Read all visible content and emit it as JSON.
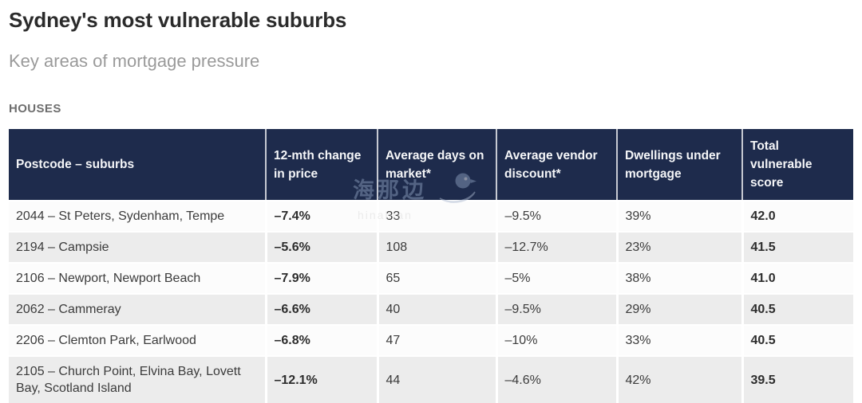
{
  "page": {
    "title": "Sydney's most vulnerable suburbs",
    "subtitle": "Key areas of mortgage pressure",
    "section_label": "HOUSES"
  },
  "colors": {
    "header_bg": "#1e2b4c",
    "header_text": "#f5f6f8",
    "zebra_row_bg": "#ececec",
    "plain_row_bg": "#fcfcfc"
  },
  "watermark": {
    "text_cn": "海那边",
    "text_en": "hinabian",
    "icon": "bird-icon"
  },
  "table": {
    "columns": [
      {
        "key": "postcode-suburbs",
        "label": "Postcode – suburbs"
      },
      {
        "key": "price-change-12mth",
        "label": "12-mth change in price"
      },
      {
        "key": "avg-days-on-market",
        "label": "Average days on market*"
      },
      {
        "key": "avg-vendor-discount",
        "label": "Average vendor discount*"
      },
      {
        "key": "dwellings-under-mortgage",
        "label": "Dwellings under mortgage"
      },
      {
        "key": "total-vulnerable-score",
        "label": "Total vulnerable score"
      }
    ],
    "rows": [
      [
        "2044 – St Peters, Sydenham, Tempe",
        "–7.4%",
        "33",
        "–9.5%",
        "39%",
        "42.0"
      ],
      [
        "2194 – Campsie",
        "–5.6%",
        "108",
        "–12.7%",
        "23%",
        "41.5"
      ],
      [
        "2106 – Newport, Newport Beach",
        "–7.9%",
        "65",
        "–5%",
        "38%",
        "41.0"
      ],
      [
        "2062 – Cammeray",
        "–6.6%",
        "40",
        "–9.5%",
        "29%",
        "40.5"
      ],
      [
        "2206 – Clemton Park, Earlwood",
        "–6.8%",
        "47",
        "–10%",
        "33%",
        "40.5"
      ],
      [
        "2105 – Church Point, Elvina Bay, Lovett Bay, Scotland Island",
        "–12.1%",
        "44",
        "–4.6%",
        "42%",
        "39.5"
      ]
    ]
  },
  "chart_data": {
    "type": "table",
    "title": "Sydney's most vulnerable suburbs",
    "subtitle": "Key areas of mortgage pressure",
    "section": "HOUSES",
    "columns": [
      "Postcode – suburbs",
      "12-mth change in price",
      "Average days on market*",
      "Average vendor discount*",
      "Dwellings under mortgage",
      "Total vulnerable score"
    ],
    "rows": [
      [
        "2044 – St Peters, Sydenham, Tempe",
        "–7.4%",
        "33",
        "–9.5%",
        "39%",
        "42.0"
      ],
      [
        "2194 – Campsie",
        "–5.6%",
        "108",
        "–12.7%",
        "23%",
        "41.5"
      ],
      [
        "2106 – Newport, Newport Beach",
        "–7.9%",
        "65",
        "–5%",
        "38%",
        "41.0"
      ],
      [
        "2062 – Cammeray",
        "–6.6%",
        "40",
        "–9.5%",
        "29%",
        "40.5"
      ],
      [
        "2206 – Clemton Park, Earlwood",
        "–6.8%",
        "47",
        "–10%",
        "33%",
        "40.5"
      ],
      [
        "2105 – Church Point, Elvina Bay, Lovett Bay, Scotland Island",
        "–12.1%",
        "44",
        "–4.6%",
        "42%",
        "39.5"
      ]
    ],
    "bold_columns": [
      "12-mth change in price",
      "Total vulnerable score"
    ],
    "layout": {
      "zebra_striping": true,
      "header_background": "#1e2b4c"
    }
  }
}
